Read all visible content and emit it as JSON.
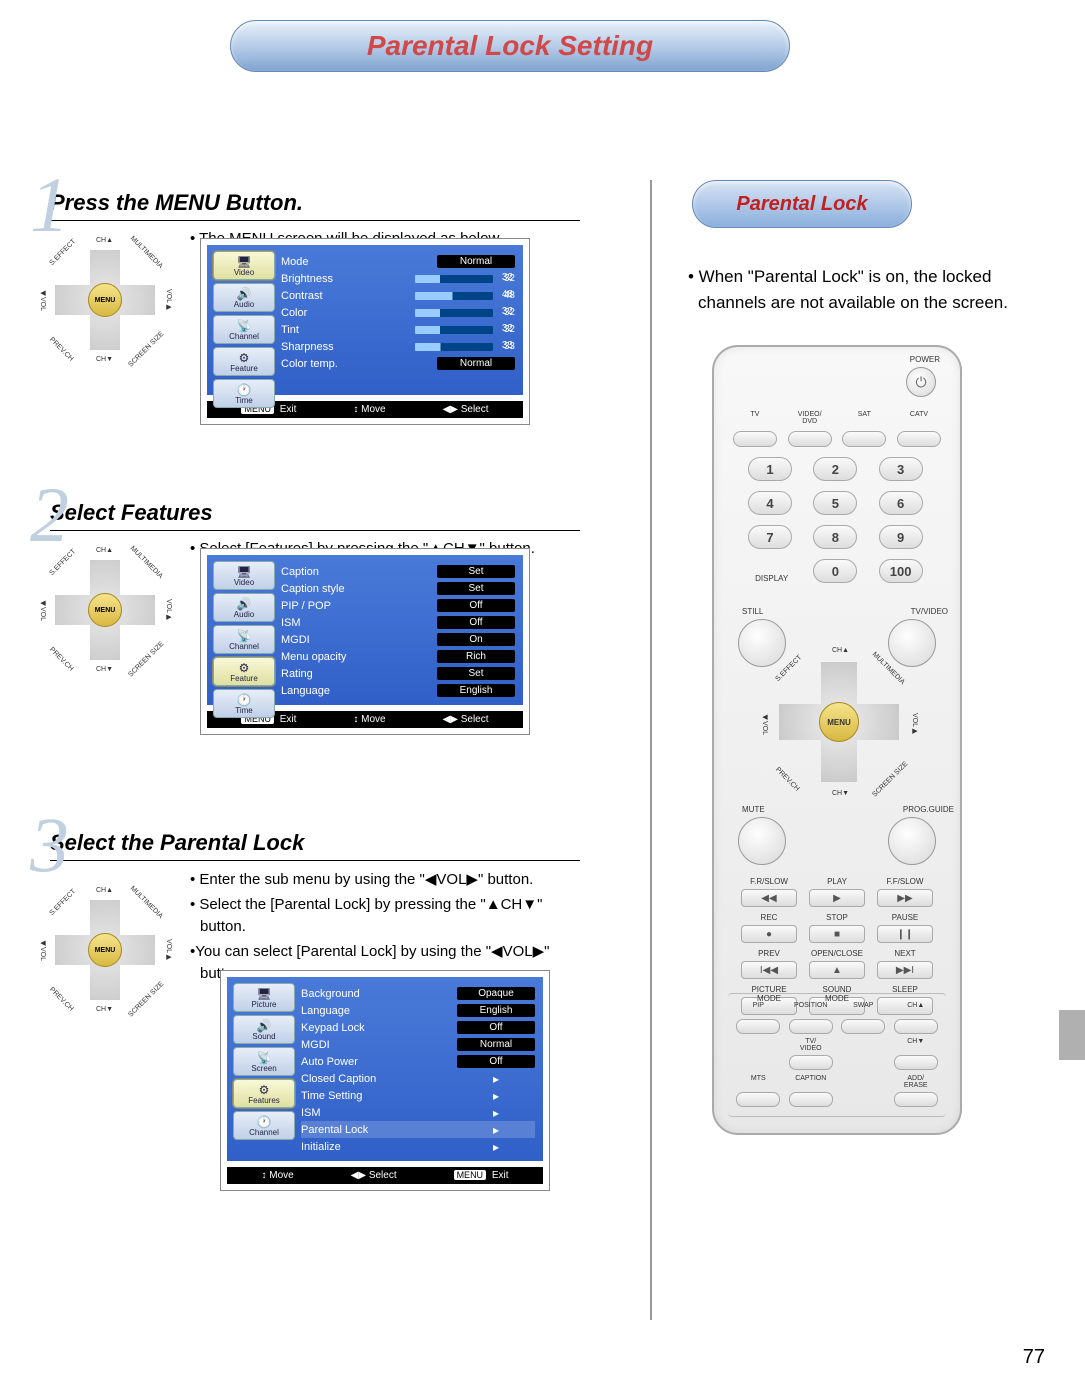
{
  "page_title": "Parental Lock Setting",
  "page_number": "77",
  "sidebar": {
    "pill": "Parental Lock",
    "text": "• When \"Parental Lock\" is on, the locked channels are not available on the screen."
  },
  "dpad": {
    "menu": "MENU",
    "ch_up": "CH▲",
    "ch_down": "CH▼",
    "vol_l": "◀VOL",
    "vol_r": "VOL▶",
    "d1": "S.EFFECT",
    "d2": "MULTIMEDIA",
    "d3": "PREV.CH",
    "d4": "SCREEN SIZE"
  },
  "steps": [
    {
      "num": "1",
      "title": "Press the MENU Button.",
      "desc_single": "• The MENU screen will be displayed as below.",
      "osd": {
        "tabs": [
          "Video",
          "Audio",
          "Channel",
          "Feature",
          "Time"
        ],
        "selected_tab": 0,
        "rows": [
          {
            "label": "Mode",
            "type": "pill",
            "value": "Normal"
          },
          {
            "label": "Brightness",
            "type": "bar",
            "value": "32",
            "pct": 32
          },
          {
            "label": "Contrast",
            "type": "bar",
            "value": "48",
            "pct": 48
          },
          {
            "label": "Color",
            "type": "bar",
            "value": "32",
            "pct": 32
          },
          {
            "label": "Tint",
            "type": "bar",
            "value": "32",
            "pct": 32
          },
          {
            "label": "Sharpness",
            "type": "bar",
            "value": "33",
            "pct": 33
          },
          {
            "label": "Color  temp.",
            "type": "pill",
            "value": "Normal"
          }
        ],
        "footer": {
          "exit": "Exit",
          "move": "Move",
          "select": "Select",
          "menu": "MENU"
        }
      }
    },
    {
      "num": "2",
      "title": "Select Features",
      "desc_single": "• Select [Features] by pressing the \"▲CH▼\" button.",
      "osd": {
        "tabs": [
          "Video",
          "Audio",
          "Channel",
          "Feature",
          "Time"
        ],
        "selected_tab": 3,
        "rows": [
          {
            "label": "Caption",
            "type": "pill",
            "value": "Set"
          },
          {
            "label": "Caption style",
            "type": "pill",
            "value": "Set"
          },
          {
            "label": "PIP / POP",
            "type": "pill",
            "value": "Off"
          },
          {
            "label": "ISM",
            "type": "pill",
            "value": "Off"
          },
          {
            "label": "MGDI",
            "type": "pill",
            "value": "On"
          },
          {
            "label": "Menu opacity",
            "type": "pill",
            "value": "Rich"
          },
          {
            "label": "Rating",
            "type": "pill",
            "value": "Set"
          },
          {
            "label": "Language",
            "type": "pill",
            "value": "English"
          }
        ],
        "footer": {
          "exit": "Exit",
          "move": "Move",
          "select": "Select",
          "menu": "MENU"
        }
      }
    },
    {
      "num": "3",
      "title": "Select the Parental Lock",
      "desc_lines": [
        "• Enter the sub menu by using the \"◀VOL▶\" button.",
        "• Select the [Parental Lock] by pressing the \"▲CH▼\" button.",
        "•You can select [Parental Lock] by using the  \"◀VOL▶\" button."
      ],
      "osd": {
        "tabs": [
          "Picture",
          "Sound",
          "Screen",
          "Features",
          "Channel"
        ],
        "selected_tab": 3,
        "rows": [
          {
            "label": "Background",
            "type": "pill",
            "value": "Opaque"
          },
          {
            "label": "Language",
            "type": "pill",
            "value": "English"
          },
          {
            "label": "Keypad Lock",
            "type": "pill",
            "value": "Off"
          },
          {
            "label": "MGDI",
            "type": "pill",
            "value": "Normal"
          },
          {
            "label": "Auto Power",
            "type": "pill",
            "value": "Off"
          },
          {
            "label": "Closed Caption",
            "type": "arrow",
            "value": "▸"
          },
          {
            "label": "Time Setting",
            "type": "arrow",
            "value": "▸"
          },
          {
            "label": "ISM",
            "type": "arrow",
            "value": "▸"
          },
          {
            "label": "Parental Lock",
            "type": "arrow",
            "value": "▸",
            "hl": true
          },
          {
            "label": "Initialize",
            "type": "arrow",
            "value": "▸"
          }
        ],
        "footer_order": "mse",
        "footer": {
          "exit": "Exit",
          "move": "Move",
          "select": "Select",
          "menu": "MENU"
        }
      }
    }
  ],
  "remote": {
    "power": "POWER",
    "sources": [
      "TV",
      "VIDEO/\nDVD",
      "SAT",
      "CATV"
    ],
    "numpad": [
      "1",
      "2",
      "3",
      "4",
      "5",
      "6",
      "7",
      "8",
      "9"
    ],
    "display_lbl": "DISPLAY",
    "zero": "0",
    "hundred": "100",
    "still": "STILL",
    "tvvideo": "TV/VIDEO",
    "mute": "MUTE",
    "pguide": "PROG.GUIDE",
    "transport": [
      {
        "lbl": "F.R/SLOW",
        "sym": "◀◀"
      },
      {
        "lbl": "PLAY",
        "sym": "▶"
      },
      {
        "lbl": "F.F/SLOW",
        "sym": "▶▶"
      },
      {
        "lbl": "REC",
        "sym": "●"
      },
      {
        "lbl": "STOP",
        "sym": "■"
      },
      {
        "lbl": "PAUSE",
        "sym": "❙❙"
      },
      {
        "lbl": "PREV",
        "sym": "I◀◀"
      },
      {
        "lbl": "OPEN/CLOSE",
        "sym": "▲"
      },
      {
        "lbl": "NEXT",
        "sym": "▶▶I"
      },
      {
        "lbl": "PICTURE\nMODE",
        "sym": ""
      },
      {
        "lbl": "SOUND\nMODE",
        "sym": ""
      },
      {
        "lbl": "SLEEP",
        "sym": ""
      }
    ],
    "sub": [
      "PIP",
      "POSITION",
      "SWAP",
      "CH▲",
      "",
      "TV/\nVIDEO",
      "",
      "CH▼",
      "MTS",
      "CAPTION",
      "",
      "ADD/\nERASE"
    ]
  }
}
